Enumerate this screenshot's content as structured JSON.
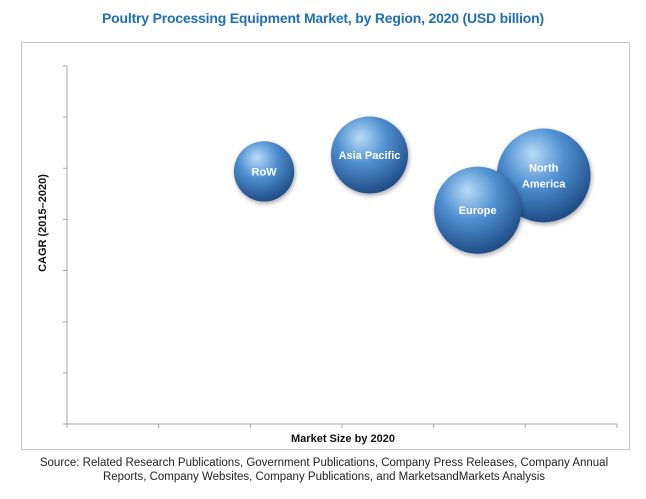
{
  "chart_data": {
    "type": "bubble",
    "title": "Poultry Processing Equipment Market, by Region, 2020 (USD billion)",
    "xlabel": "Market Size by 2020",
    "ylabel": "CAGR (2015–2020)",
    "xlim": [
      0,
      6
    ],
    "ylim": [
      0,
      7
    ],
    "x_ticks": 6,
    "y_ticks": 7,
    "grid": false,
    "tick_labels_shown": false,
    "series": [
      {
        "name": "RoW",
        "x": 2.15,
        "y": 4.94,
        "size": 0.9,
        "label": "RoW"
      },
      {
        "name": "Asia Pacific",
        "x": 3.3,
        "y": 5.26,
        "size": 1.15,
        "label": "Asia Pacific"
      },
      {
        "name": "North America",
        "x": 5.2,
        "y": 4.86,
        "size": 1.4,
        "label_lines": [
          "North",
          "America"
        ]
      },
      {
        "name": "Europe",
        "x": 4.48,
        "y": 4.18,
        "size": 1.3,
        "label": "Europe"
      }
    ],
    "colors": {
      "bubble_highlight": "#b9dcf7",
      "bubble_mid": "#4f8fd0",
      "bubble_dark": "#1b4680",
      "axis": "#a6a6a6",
      "title": "#1f6fb5"
    }
  },
  "footer": {
    "source_line1": "Source: Related Research Publications, Government Publications, Company Press Releases, Company Annual",
    "source_line2": "Reports, Company Websites, Company Publications, and MarketsandMarkets Analysis"
  }
}
